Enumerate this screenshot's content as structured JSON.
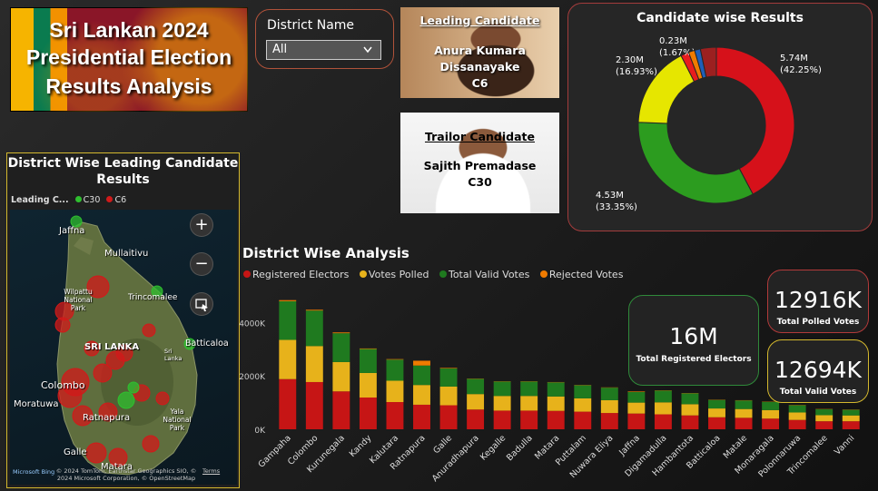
{
  "title_lines": [
    "Sri Lankan 2024",
    "Presidential Election",
    "Results Analysis"
  ],
  "slicer": {
    "label": "District Name",
    "value": "All"
  },
  "leading_candidate": {
    "heading": "Leading Candidate",
    "name_lines": [
      "Anura Kumara",
      "Dissanayake",
      "C6"
    ]
  },
  "trailing_candidate": {
    "heading": "Trailor Candidate",
    "name_lines": [
      "Sajith Premadase",
      "C30"
    ]
  },
  "donut": {
    "title": "Candidate wise Results",
    "segments": [
      {
        "label": "5.74M",
        "pct": "(42.25%)",
        "share": 42.25,
        "color": "#d6111a"
      },
      {
        "label": "4.53M",
        "pct": "(33.35%)",
        "share": 33.35,
        "color": "#2c9c1f"
      },
      {
        "label": "2.30M",
        "pct": "(16.93%)",
        "share": 16.93,
        "color": "#e6e600"
      },
      {
        "label": "0.23M",
        "pct": "(1.67%)",
        "share": 1.67,
        "color": "#e81d1d"
      },
      {
        "label": "",
        "pct": "",
        "share": 1.3,
        "color": "#f07b00"
      },
      {
        "label": "",
        "pct": "",
        "share": 1.2,
        "color": "#1f5fb8"
      },
      {
        "label": "",
        "pct": "",
        "share": 3.3,
        "color": "#9c2020"
      }
    ]
  },
  "map": {
    "title": "District Wise Leading Candidate Results",
    "legend_label": "Leading C...",
    "legend_items": [
      {
        "label": "C30",
        "color": "#2fbf2f"
      },
      {
        "label": "C6",
        "color": "#d11a1a"
      }
    ],
    "place_labels": [
      "Jaffna",
      "Mullaitivu",
      "Wilpattu National Park",
      "Trincomalee",
      "SRI LANKA",
      "Sri Lanka",
      "Batticaloa",
      "Colombo",
      "Moratuwa",
      "Ratnapura",
      "Yala National Park",
      "Galle",
      "Matara"
    ],
    "credit": "© 2024 TomTom, Earthstar Geographics SIO, © 2024 Microsoft Corporation, © OpenStreetMap",
    "credit_brand": "Microsoft Bing",
    "terms": "Terms",
    "icons": [
      "zoom-in-icon",
      "zoom-out-icon",
      "select-icon"
    ]
  },
  "analysis": {
    "title": "District Wise Analysis",
    "legend": [
      {
        "label": "Registered Electors",
        "color": "#c61515"
      },
      {
        "label": "Votes Polled",
        "color": "#e7b21b"
      },
      {
        "label": "Total Valid Votes",
        "color": "#1f7a1f"
      },
      {
        "label": "Rejected Votes",
        "color": "#f07b00"
      }
    ]
  },
  "chart_data": {
    "type": "bar",
    "stacked": true,
    "y_ticks": [
      "0K",
      "2000K",
      "4000K"
    ],
    "ylim": [
      0,
      5000
    ],
    "categories": [
      "Gampaha",
      "Colombo",
      "Kurunegala",
      "Kandy",
      "Kalutara",
      "Ratnapura",
      "Galle",
      "Anuradhapura",
      "Kegalle",
      "Badulla",
      "Matara",
      "Puttalam",
      "Nuwara Eliya",
      "Jaffna",
      "Digamadulla",
      "Hambantota",
      "Batticaloa",
      "Matale",
      "Monaragala",
      "Polonnaruwa",
      "Trincomalee",
      "Vanni"
    ],
    "series": [
      {
        "name": "Registered Electors",
        "values": [
          1880,
          1770,
          1420,
          1190,
          1020,
          920,
          900,
          740,
          700,
          700,
          690,
          660,
          610,
          590,
          560,
          520,
          450,
          430,
          400,
          350,
          300,
          300
        ]
      },
      {
        "name": "Votes Polled",
        "values": [
          1470,
          1350,
          1100,
          920,
          800,
          740,
          700,
          580,
          550,
          550,
          540,
          500,
          480,
          410,
          450,
          420,
          330,
          330,
          320,
          280,
          230,
          220
        ]
      },
      {
        "name": "Total Valid Votes",
        "values": [
          1450,
          1330,
          1080,
          900,
          790,
          730,
          680,
          570,
          540,
          540,
          530,
          490,
          470,
          400,
          440,
          410,
          320,
          320,
          310,
          270,
          220,
          210
        ]
      },
      {
        "name": "Rejected Votes",
        "values": [
          40,
          30,
          30,
          20,
          20,
          180,
          20,
          10,
          10,
          10,
          10,
          10,
          10,
          20,
          10,
          10,
          10,
          10,
          10,
          10,
          10,
          10
        ]
      }
    ]
  },
  "kpis": {
    "electors": {
      "value": "16M",
      "label": "Total Registered Electors"
    },
    "polled": {
      "value": "12916K",
      "label": "Total Polled Votes"
    },
    "valid": {
      "value": "12694K",
      "label": "Total Valid Votes"
    }
  }
}
